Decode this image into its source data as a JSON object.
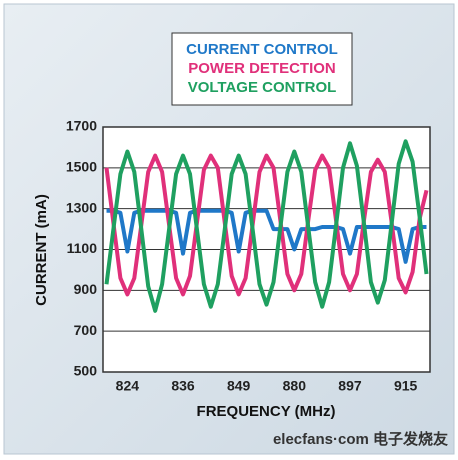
{
  "chart_data": {
    "type": "line",
    "xlabel": "FREQUENCY (MHz)",
    "ylabel": "CURRENT (mA)",
    "watermark": "elecfans·com 电子发烧友",
    "categories": [
      null,
      null,
      null,
      "824",
      null,
      null,
      null,
      null,
      null,
      null,
      null,
      "836",
      null,
      null,
      null,
      null,
      null,
      null,
      null,
      "849",
      null,
      null,
      null,
      null,
      null,
      null,
      null,
      "880",
      null,
      null,
      null,
      null,
      null,
      null,
      null,
      "897",
      null,
      null,
      null,
      null,
      null,
      null,
      null,
      "915",
      null,
      null,
      null
    ],
    "series": [
      {
        "name": "CURRENT CONTROL",
        "color": "#1f78c8",
        "values": [
          1290,
          1290,
          1280,
          1090,
          1280,
          1290,
          1290,
          1290,
          1290,
          1290,
          1280,
          1080,
          1280,
          1290,
          1290,
          1290,
          1290,
          1290,
          1280,
          1090,
          1280,
          1290,
          1290,
          1290,
          1200,
          1200,
          1200,
          1100,
          1200,
          1200,
          1200,
          1210,
          1210,
          1210,
          1200,
          1080,
          1210,
          1210,
          1210,
          1210,
          1210,
          1210,
          1200,
          1040,
          1200,
          1210,
          1210
        ]
      },
      {
        "name": "POWER DETECTION",
        "color": "#e0307a",
        "values": [
          1500,
          1230,
          960,
          880,
          960,
          1220,
          1480,
          1560,
          1480,
          1220,
          960,
          880,
          970,
          1230,
          1490,
          1560,
          1500,
          1230,
          970,
          880,
          960,
          1220,
          1480,
          1560,
          1500,
          1240,
          980,
          900,
          980,
          1240,
          1490,
          1560,
          1500,
          1240,
          980,
          900,
          980,
          1240,
          1480,
          1540,
          1480,
          1230,
          960,
          890,
          990,
          1250,
          1390
        ]
      },
      {
        "name": "VOLTAGE CONTROL",
        "color": "#1fa060",
        "values": [
          930,
          1200,
          1470,
          1580,
          1480,
          1200,
          920,
          800,
          930,
          1200,
          1470,
          1560,
          1470,
          1200,
          930,
          820,
          930,
          1200,
          1470,
          1560,
          1470,
          1200,
          930,
          830,
          940,
          1210,
          1480,
          1580,
          1480,
          1210,
          940,
          820,
          940,
          1220,
          1500,
          1620,
          1510,
          1230,
          940,
          840,
          950,
          1230,
          1520,
          1630,
          1530,
          1260,
          980
        ]
      }
    ],
    "ylim": [
      500,
      1700
    ],
    "yticks": [
      500,
      700,
      900,
      1100,
      1300,
      1500,
      1700
    ],
    "grid": true
  }
}
